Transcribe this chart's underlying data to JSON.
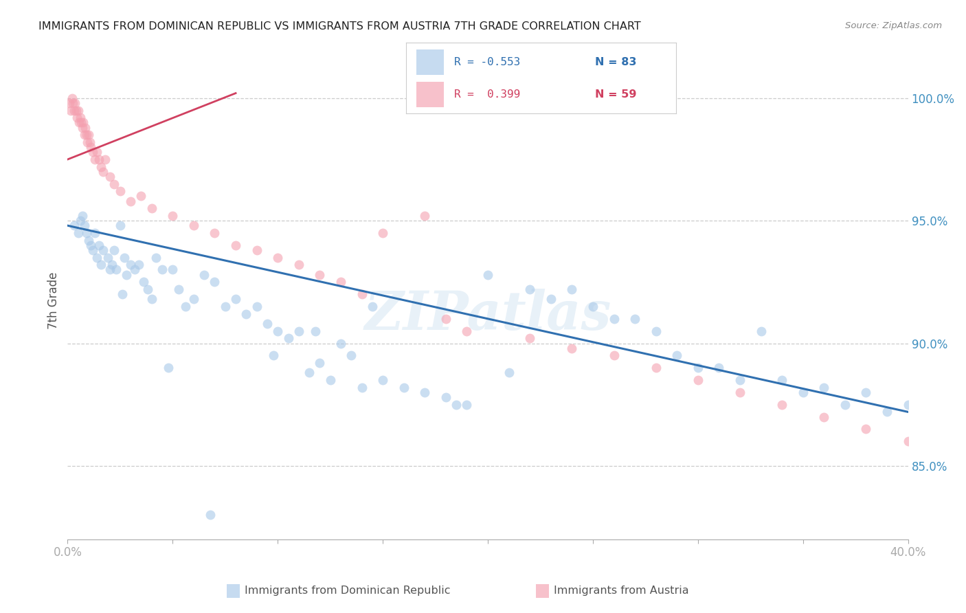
{
  "title": "IMMIGRANTS FROM DOMINICAN REPUBLIC VS IMMIGRANTS FROM AUSTRIA 7TH GRADE CORRELATION CHART",
  "source": "Source: ZipAtlas.com",
  "ylabel": "7th Grade",
  "ylabel_right_ticks": [
    85.0,
    90.0,
    95.0,
    100.0
  ],
  "watermark": "ZIPatlas",
  "blue_color": "#a8c8e8",
  "pink_color": "#f4a0b0",
  "line_blue": "#3070b0",
  "line_pink": "#d04060",
  "axis_color": "#4090c0",
  "blue_scatter_x": [
    0.3,
    0.5,
    0.6,
    0.7,
    0.8,
    0.9,
    1.0,
    1.1,
    1.2,
    1.3,
    1.4,
    1.5,
    1.6,
    1.7,
    1.9,
    2.0,
    2.1,
    2.2,
    2.3,
    2.5,
    2.7,
    2.8,
    3.0,
    3.2,
    3.4,
    3.6,
    3.8,
    4.0,
    4.2,
    4.5,
    5.0,
    5.3,
    5.6,
    6.0,
    6.5,
    7.0,
    7.5,
    8.0,
    8.5,
    9.0,
    9.5,
    10.0,
    10.5,
    11.0,
    11.5,
    12.0,
    12.5,
    13.0,
    13.5,
    14.0,
    15.0,
    16.0,
    17.0,
    18.0,
    18.5,
    19.0,
    20.0,
    21.0,
    22.0,
    23.0,
    24.0,
    25.0,
    26.0,
    27.0,
    28.0,
    29.0,
    30.0,
    31.0,
    32.0,
    33.0,
    34.0,
    35.0,
    36.0,
    37.0,
    38.0,
    39.0,
    40.0,
    14.5,
    11.8,
    9.8,
    6.8,
    4.8,
    2.6
  ],
  "blue_scatter_y": [
    94.8,
    94.5,
    95.0,
    95.2,
    94.8,
    94.5,
    94.2,
    94.0,
    93.8,
    94.5,
    93.5,
    94.0,
    93.2,
    93.8,
    93.5,
    93.0,
    93.2,
    93.8,
    93.0,
    94.8,
    93.5,
    92.8,
    93.2,
    93.0,
    93.2,
    92.5,
    92.2,
    91.8,
    93.5,
    93.0,
    93.0,
    92.2,
    91.5,
    91.8,
    92.8,
    92.5,
    91.5,
    91.8,
    91.2,
    91.5,
    90.8,
    90.5,
    90.2,
    90.5,
    88.8,
    89.2,
    88.5,
    90.0,
    89.5,
    88.2,
    88.5,
    88.2,
    88.0,
    87.8,
    87.5,
    87.5,
    92.8,
    88.8,
    92.2,
    91.8,
    92.2,
    91.5,
    91.0,
    91.0,
    90.5,
    89.5,
    89.0,
    89.0,
    88.5,
    90.5,
    88.5,
    88.0,
    88.2,
    87.5,
    88.0,
    87.2,
    87.5,
    91.5,
    90.5,
    89.5,
    83.0,
    89.0,
    92.0
  ],
  "pink_scatter_x": [
    0.1,
    0.15,
    0.2,
    0.25,
    0.3,
    0.35,
    0.4,
    0.45,
    0.5,
    0.55,
    0.6,
    0.65,
    0.7,
    0.75,
    0.8,
    0.85,
    0.9,
    0.95,
    1.0,
    1.05,
    1.1,
    1.2,
    1.3,
    1.4,
    1.5,
    1.6,
    1.7,
    1.8,
    2.0,
    2.2,
    2.5,
    3.0,
    3.5,
    4.0,
    5.0,
    6.0,
    7.0,
    8.0,
    9.0,
    10.0,
    11.0,
    12.0,
    13.0,
    14.0,
    15.0,
    17.0,
    18.0,
    19.0,
    20.0,
    22.0,
    24.0,
    26.0,
    28.0,
    30.0,
    32.0,
    34.0,
    36.0,
    38.0,
    40.0
  ],
  "pink_scatter_y": [
    99.8,
    99.5,
    100.0,
    99.8,
    99.5,
    99.8,
    99.5,
    99.2,
    99.5,
    99.0,
    99.2,
    99.0,
    98.8,
    99.0,
    98.5,
    98.8,
    98.5,
    98.2,
    98.5,
    98.2,
    98.0,
    97.8,
    97.5,
    97.8,
    97.5,
    97.2,
    97.0,
    97.5,
    96.8,
    96.5,
    96.2,
    95.8,
    96.0,
    95.5,
    95.2,
    94.8,
    94.5,
    94.0,
    93.8,
    93.5,
    93.2,
    92.8,
    92.5,
    92.0,
    94.5,
    95.2,
    91.0,
    90.5,
    99.8,
    90.2,
    89.8,
    89.5,
    89.0,
    88.5,
    88.0,
    87.5,
    87.0,
    86.5,
    86.0
  ],
  "blue_line_x": [
    0.0,
    40.0
  ],
  "blue_line_y": [
    94.8,
    87.2
  ],
  "pink_line_x": [
    0.0,
    8.0
  ],
  "pink_line_y": [
    97.5,
    100.2
  ],
  "xmin": 0.0,
  "xmax": 40.0,
  "ymin": 82.0,
  "ymax": 101.5,
  "plot_ymin": 87.0,
  "plot_ymax": 100.5
}
